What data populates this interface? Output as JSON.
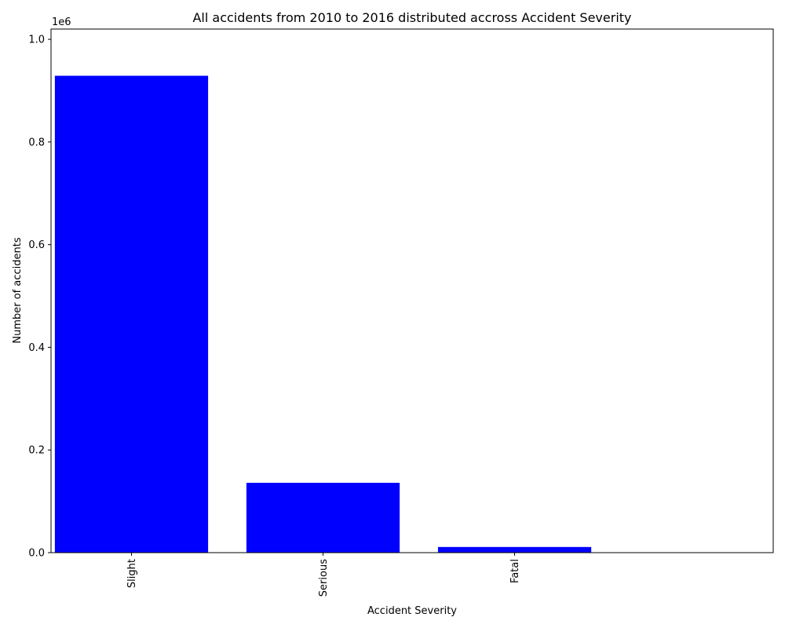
{
  "chart_data": {
    "type": "bar",
    "title": "All accidents from 2010 to 2016 distributed accross Accident Severity",
    "xlabel": "Accident Severity",
    "ylabel": "Number of accidents",
    "y_offset_label": "1e6",
    "categories": [
      "Slight",
      "Serious",
      "Fatal"
    ],
    "values": [
      929000,
      136000,
      11000
    ],
    "ylim": [
      0,
      1.02
    ],
    "y_ticks": [
      0.0,
      0.2,
      0.4,
      0.6,
      0.8,
      1.0
    ],
    "y_tick_labels": [
      "0.0",
      "0.2",
      "0.4",
      "0.6",
      "0.8",
      "1.0"
    ],
    "bar_color": "#0000ff",
    "grid": false,
    "x_tick_rotation": "vertical"
  }
}
